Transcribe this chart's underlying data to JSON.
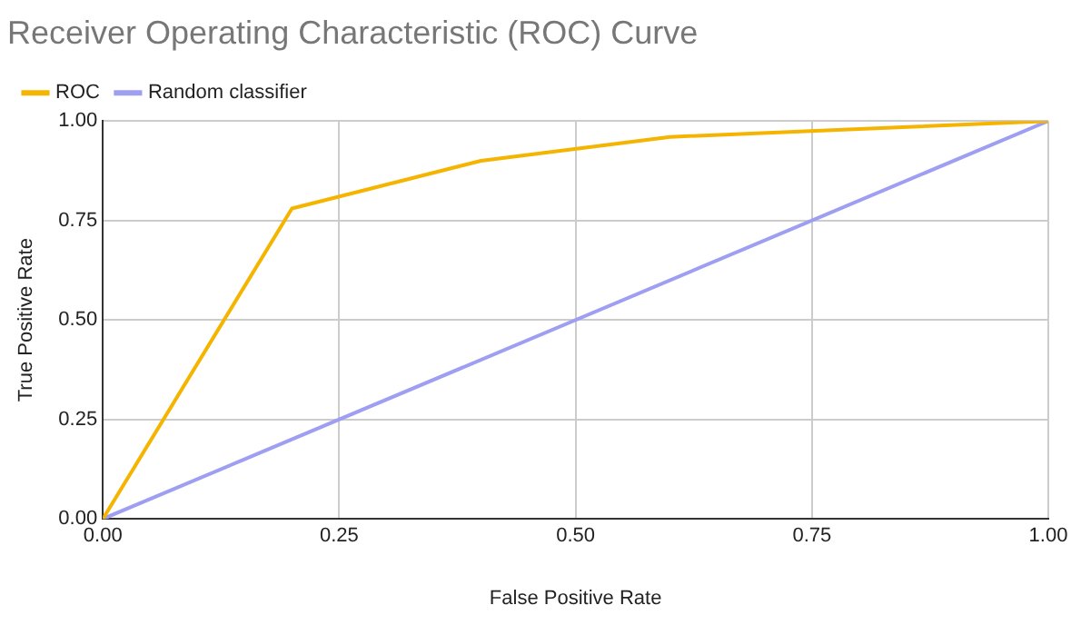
{
  "chart_data": {
    "type": "line",
    "title": "Receiver Operating Characteristic (ROC) Curve",
    "xlabel": "False Positive Rate",
    "ylabel": "True Positive Rate",
    "series": [
      {
        "name": "ROC",
        "color": "#f4b400",
        "x": [
          0,
          0.2,
          0.4,
          0.6,
          0.8,
          1
        ],
        "values": [
          0,
          0.78,
          0.9,
          0.96,
          0.98,
          1
        ]
      },
      {
        "name": "Random classifier",
        "color": "#9e9ef2",
        "x": [
          0,
          1
        ],
        "values": [
          0,
          1
        ]
      }
    ],
    "xlim": [
      0,
      1
    ],
    "xticks": [
      {
        "value": 0,
        "label": "0.00"
      },
      {
        "value": 0.25,
        "label": "0.25"
      },
      {
        "value": 0.5,
        "label": "0.50"
      },
      {
        "value": 0.75,
        "label": "0.75"
      },
      {
        "value": 1,
        "label": "1.00"
      }
    ],
    "ylim": [
      0,
      1
    ],
    "yticks": [
      {
        "value": 0,
        "label": "0.00"
      },
      {
        "value": 0.25,
        "label": "0.25"
      },
      {
        "value": 0.5,
        "label": "0.50"
      },
      {
        "value": 0.75,
        "label": "0.75"
      },
      {
        "value": 1,
        "label": "1.00"
      }
    ],
    "grid": true,
    "legend": "top",
    "marker": "none",
    "line_style": "solid"
  }
}
